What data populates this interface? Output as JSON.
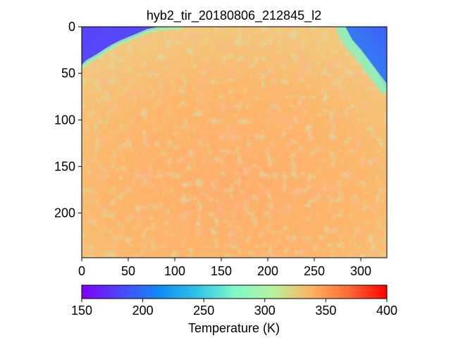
{
  "chart_data": {
    "type": "heatmap",
    "title": "hyb2_tir_20180806_212845_l2",
    "x_ticks": [
      0,
      50,
      100,
      150,
      200,
      250,
      300
    ],
    "y_ticks": [
      0,
      50,
      100,
      150,
      200
    ],
    "xlim": [
      0,
      328
    ],
    "ylim": [
      248,
      0
    ],
    "colorbar": {
      "label": "Temperature (K)",
      "range": [
        150,
        400
      ],
      "ticks": [
        150,
        200,
        250,
        300,
        350,
        400
      ],
      "colormap": "rainbow"
    },
    "approx_regions": [
      {
        "region": "asteroid surface (sunlit)",
        "temperature_K": 340
      },
      {
        "region": "asteroid limb / edge",
        "temperature_K": 300
      },
      {
        "region": "space background",
        "temperature_K": 170
      }
    ]
  }
}
